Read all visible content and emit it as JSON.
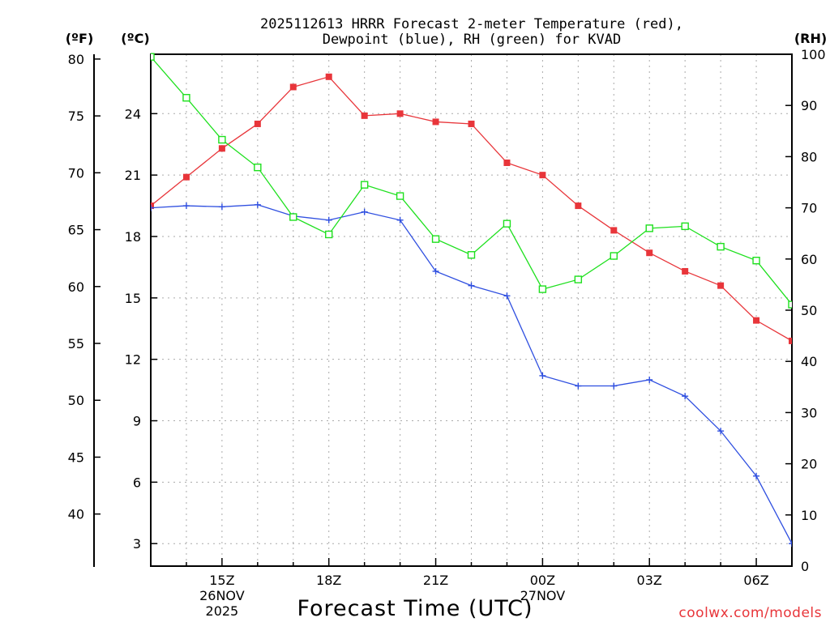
{
  "chart_data": {
    "type": "line",
    "title_line1": "2025112613 HRRR Forecast 2-meter Temperature (red),",
    "title_line2": "Dewpoint (blue), RH (green) for KVAD",
    "xlabel": "Forecast Time (UTC)",
    "credit": "coolwx.com/models",
    "unit_f": "(ºF)",
    "unit_c": "(ºC)",
    "unit_rh": "(RH)",
    "hours": [
      13,
      14,
      15,
      16,
      17,
      18,
      19,
      20,
      21,
      22,
      23,
      24,
      25,
      26,
      27,
      28,
      29,
      30,
      31
    ],
    "xlim": [
      13,
      31
    ],
    "x_ticks": [
      {
        "hour": 15,
        "label": "15Z"
      },
      {
        "hour": 18,
        "label": "18Z"
      },
      {
        "hour": 21,
        "label": "21Z"
      },
      {
        "hour": 24,
        "label": "00Z"
      },
      {
        "hour": 27,
        "label": "03Z"
      },
      {
        "hour": 30,
        "label": "06Z"
      }
    ],
    "date_labels": [
      {
        "hour": 15,
        "lines": [
          "26NOV",
          "2025"
        ]
      },
      {
        "hour": 24,
        "lines": [
          "27NOV"
        ]
      }
    ],
    "ylim_c": [
      1.9,
      26.9
    ],
    "c_ticks": [
      3,
      6,
      9,
      12,
      15,
      18,
      21,
      24
    ],
    "f_ticks": [
      40,
      45,
      50,
      55,
      60,
      65,
      70,
      75,
      80
    ],
    "rh_lim": [
      0,
      100
    ],
    "rh_ticks": [
      0,
      10,
      20,
      30,
      40,
      50,
      60,
      70,
      80,
      90,
      100
    ],
    "series": [
      {
        "name": "Temperature",
        "color": "#e8353a",
        "marker": "filled-square",
        "values": [
          19.5,
          20.9,
          22.3,
          23.5,
          25.3,
          25.8,
          23.9,
          24.0,
          23.6,
          23.5,
          21.6,
          21.0,
          19.5,
          18.3,
          17.2,
          16.3,
          15.6,
          13.9,
          12.9
        ]
      },
      {
        "name": "Dewpoint",
        "color": "#2f4fe0",
        "marker": "plus",
        "values": [
          19.4,
          19.5,
          19.45,
          19.55,
          19.0,
          18.8,
          19.2,
          18.8,
          16.3,
          15.6,
          15.1,
          11.2,
          10.7,
          10.7,
          11.0,
          10.2,
          8.5,
          6.3,
          3.0
        ]
      },
      {
        "name": "RH",
        "color": "#1ee01e",
        "marker": "open-square",
        "axis": "rh",
        "values": [
          99.5,
          91.5,
          83.3,
          77.9,
          68.2,
          64.8,
          74.5,
          72.3,
          63.9,
          60.8,
          66.9,
          54.1,
          56.0,
          60.6,
          66.0,
          66.4,
          62.4,
          59.7,
          51.1
        ]
      }
    ]
  }
}
